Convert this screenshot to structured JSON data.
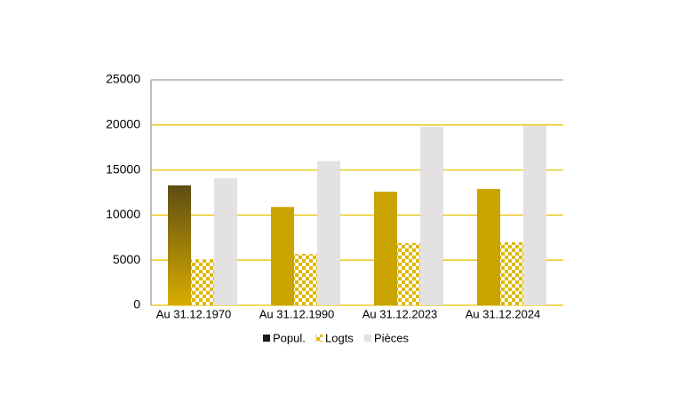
{
  "chart_data": {
    "type": "bar",
    "categories": [
      "Au 31.12.1970",
      "Au 31.12.1990",
      "Au 31.12.2023",
      "Au 31.12.2024"
    ],
    "series": [
      {
        "name": "Popul.",
        "color": "#c9a400",
        "values": [
          13300,
          10900,
          12600,
          12900
        ]
      },
      {
        "name": "Logts",
        "color": "#e0b800",
        "values": [
          5100,
          5700,
          6900,
          7000
        ]
      },
      {
        "name": "Pièces",
        "color": "#e3e1e1",
        "values": [
          14100,
          16000,
          19800,
          19900
        ]
      }
    ],
    "ylim": [
      0,
      25000
    ],
    "yticks": [
      0,
      5000,
      10000,
      15000,
      20000,
      25000
    ],
    "grid": true,
    "legend": "bottom"
  }
}
